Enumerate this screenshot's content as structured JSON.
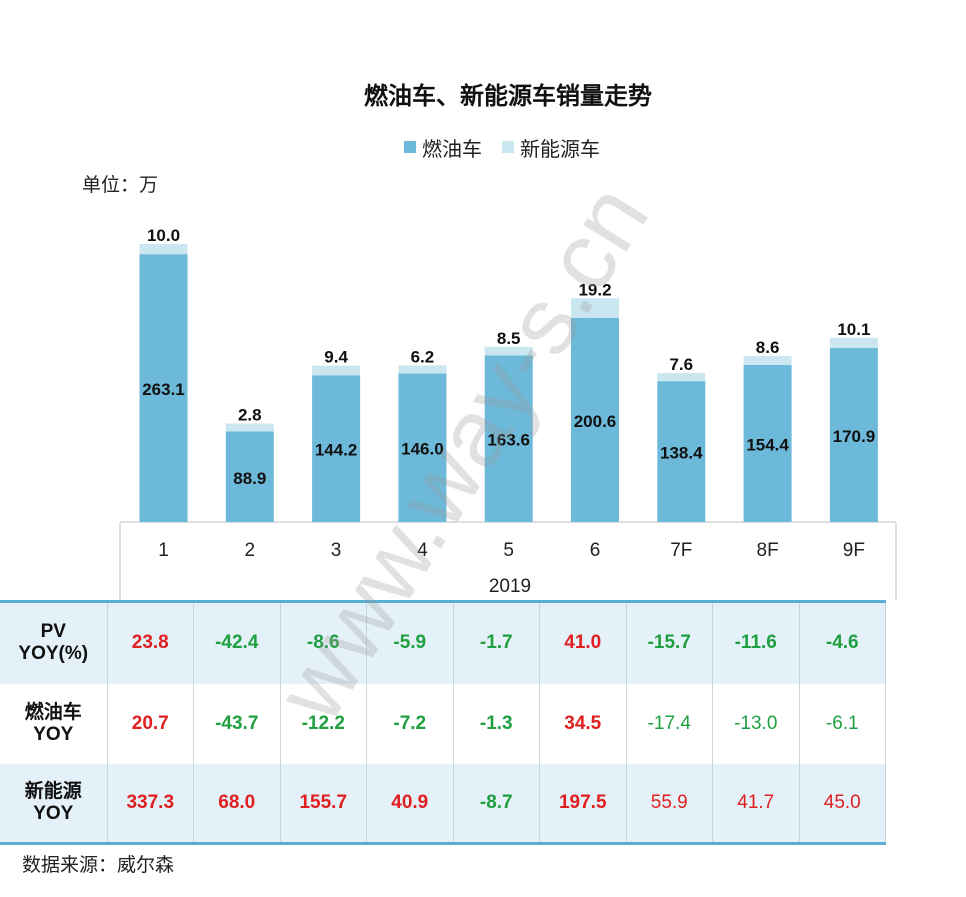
{
  "chart_data": {
    "type": "bar",
    "stacked": true,
    "title": "燃油车、新能源车销量走势",
    "unit_label": "单位：万",
    "categories": [
      "1",
      "2",
      "3",
      "4",
      "5",
      "6",
      "7F",
      "8F",
      "9F"
    ],
    "group_label": "2019",
    "series": [
      {
        "name": "燃油车",
        "color": "#6cb9da",
        "values": [
          263.1,
          88.9,
          144.2,
          146.0,
          163.6,
          200.6,
          138.4,
          154.4,
          170.9
        ]
      },
      {
        "name": "新能源车",
        "color": "#cae7f1",
        "values": [
          10.0,
          2.8,
          9.4,
          6.2,
          8.5,
          19.2,
          7.6,
          8.6,
          10.1
        ]
      }
    ],
    "ylim": [
      0,
      300
    ]
  },
  "table": {
    "rows": [
      {
        "label": [
          "PV",
          "YOY(%)"
        ],
        "values": [
          "23.8",
          "-42.4",
          "-8.6",
          "-5.9",
          "-1.7",
          "41.0",
          "-15.7",
          "-11.6",
          "-4.6"
        ],
        "bold_count": 9
      },
      {
        "label": [
          "燃油车",
          "YOY"
        ],
        "values": [
          "20.7",
          "-43.7",
          "-12.2",
          "-7.2",
          "-1.3",
          "34.5",
          "-17.4",
          "-13.0",
          "-6.1"
        ],
        "bold_count": 6
      },
      {
        "label": [
          "新能源",
          "YOY"
        ],
        "values": [
          "337.3",
          "68.0",
          "155.7",
          "40.9",
          "-8.7",
          "197.5",
          "55.9",
          "41.7",
          "45.0"
        ],
        "bold_count": 6
      }
    ]
  },
  "source_note": "数据来源：威尔森",
  "watermark": "www.way-s.cn"
}
